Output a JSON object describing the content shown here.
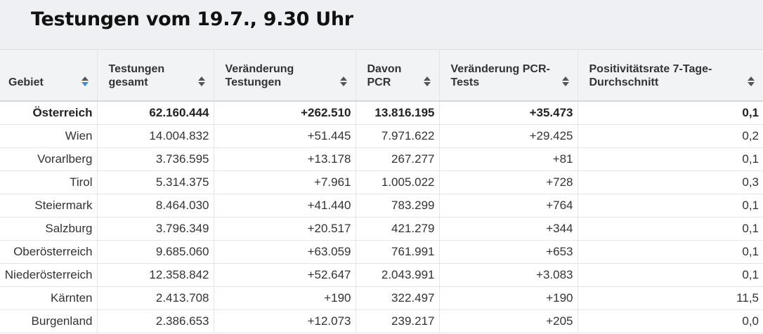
{
  "title": "Testungen vom 19.7., 9.30 Uhr",
  "columns": [
    {
      "label": "Gebiet",
      "active": true
    },
    {
      "label": "Testungen\ngesamt"
    },
    {
      "label": "Veränderung\nTestungen"
    },
    {
      "label": "Davon\nPCR"
    },
    {
      "label": "Veränderung PCR-\nTests"
    },
    {
      "label": "Positivitätsrate 7-Tage-\nDurchschnitt"
    }
  ],
  "rows": [
    {
      "gebiet": "Österreich",
      "gesamt": "62.160.444",
      "veraenderung": "+262.510",
      "pcr": "13.816.195",
      "pcr_veraenderung": "+35.473",
      "rate": "0,1"
    },
    {
      "gebiet": "Wien",
      "gesamt": "14.004.832",
      "veraenderung": "+51.445",
      "pcr": "7.971.622",
      "pcr_veraenderung": "+29.425",
      "rate": "0,2"
    },
    {
      "gebiet": "Vorarlberg",
      "gesamt": "3.736.595",
      "veraenderung": "+13.178",
      "pcr": "267.277",
      "pcr_veraenderung": "+81",
      "rate": "0,1"
    },
    {
      "gebiet": "Tirol",
      "gesamt": "5.314.375",
      "veraenderung": "+7.961",
      "pcr": "1.005.022",
      "pcr_veraenderung": "+728",
      "rate": "0,3"
    },
    {
      "gebiet": "Steiermark",
      "gesamt": "8.464.030",
      "veraenderung": "+41.440",
      "pcr": "783.299",
      "pcr_veraenderung": "+764",
      "rate": "0,1"
    },
    {
      "gebiet": "Salzburg",
      "gesamt": "3.796.349",
      "veraenderung": "+20.517",
      "pcr": "421.279",
      "pcr_veraenderung": "+344",
      "rate": "0,1"
    },
    {
      "gebiet": "Oberösterreich",
      "gesamt": "9.685.060",
      "veraenderung": "+63.059",
      "pcr": "761.991",
      "pcr_veraenderung": "+653",
      "rate": "0,1"
    },
    {
      "gebiet": "Niederösterreich",
      "gesamt": "12.358.842",
      "veraenderung": "+52.647",
      "pcr": "2.043.991",
      "pcr_veraenderung": "+3.083",
      "rate": "0,1"
    },
    {
      "gebiet": "Kärnten",
      "gesamt": "2.413.708",
      "veraenderung": "+190",
      "pcr": "322.497",
      "pcr_veraenderung": "+190",
      "rate": "11,5"
    },
    {
      "gebiet": "Burgenland",
      "gesamt": "2.386.653",
      "veraenderung": "+12.073",
      "pcr": "239.217",
      "pcr_veraenderung": "+205",
      "rate": "0,0"
    }
  ],
  "colors": {
    "sort_active": "#3b8bd9",
    "header_bg": "#f2f3f5"
  }
}
